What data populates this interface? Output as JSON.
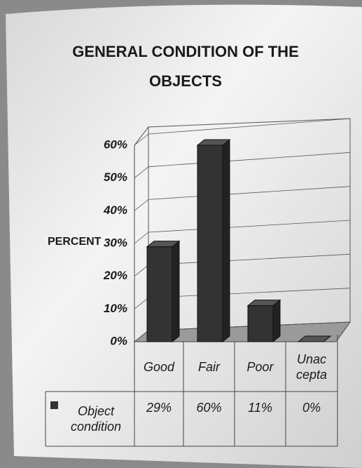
{
  "chart_data": {
    "type": "bar",
    "title": "GENERAL CONDITION OF THE OBJECTS",
    "y_label": "PERCENT",
    "categories": [
      "Good",
      "Fair",
      "Poor",
      "Unac\ncepta"
    ],
    "series": [
      {
        "name": "Object condition",
        "color": "#333333",
        "values": [
          29,
          60,
          11,
          0
        ],
        "value_labels": [
          "29%",
          "60%",
          "11%",
          "0%"
        ]
      }
    ],
    "ylim": [
      0,
      60
    ],
    "yticks": [
      {
        "value": 0,
        "label": "0%"
      },
      {
        "value": 10,
        "label": "10%"
      },
      {
        "value": 20,
        "label": "20%"
      },
      {
        "value": 30,
        "label": "30%"
      },
      {
        "value": 40,
        "label": "40%"
      },
      {
        "value": 50,
        "label": "50%"
      },
      {
        "value": 60,
        "label": "60%"
      }
    ],
    "grid": true
  }
}
